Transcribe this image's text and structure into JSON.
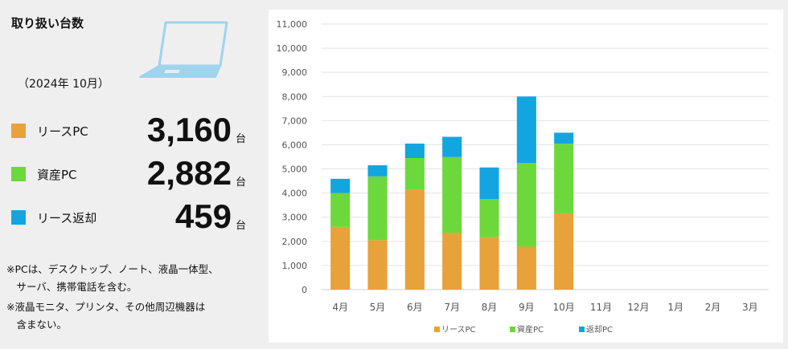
{
  "summary": {
    "title": "取り扱い台数",
    "period": "（2024年 10月）",
    "items": [
      {
        "label": "リースPC",
        "value": "3,160",
        "unit": "台",
        "color": "#e8a23a"
      },
      {
        "label": "資産PC",
        "value": "2,882",
        "unit": "台",
        "color": "#6dd83b"
      },
      {
        "label": "リース返却",
        "value": "459",
        "unit": "台",
        "color": "#12a5e0"
      }
    ],
    "notes": [
      "※PCは、デスクトップ、ノート、液晶一体型、",
      "　サーバ、携帯電話を含む。",
      "※液晶モニタ、プリンタ、その他周辺機器は",
      "　含まない。"
    ]
  },
  "chart_data": {
    "type": "bar",
    "stacked": true,
    "categories": [
      "4月",
      "5月",
      "6月",
      "7月",
      "8月",
      "9月",
      "10月",
      "11月",
      "12月",
      "1月",
      "2月",
      "3月"
    ],
    "series": [
      {
        "name": "リースPC",
        "color": "#e8a23a",
        "values": [
          2600,
          2050,
          4130,
          2360,
          2180,
          1780,
          3160,
          null,
          null,
          null,
          null,
          null
        ]
      },
      {
        "name": "資産PC",
        "color": "#6dd83b",
        "values": [
          1400,
          2640,
          1320,
          3130,
          1570,
          3460,
          2882,
          null,
          null,
          null,
          null,
          null
        ]
      },
      {
        "name": "返却PC",
        "color": "#12a5e0",
        "values": [
          590,
          460,
          600,
          840,
          1310,
          2760,
          459,
          null,
          null,
          null,
          null,
          null
        ]
      }
    ],
    "ylim": [
      0,
      11000
    ],
    "yticks": [
      "0",
      "1,000",
      "2,000",
      "3,000",
      "4,000",
      "5,000",
      "6,000",
      "7,000",
      "8,000",
      "9,000",
      "10,000",
      "11,000"
    ],
    "grid": true,
    "legend_position": "bottom"
  }
}
